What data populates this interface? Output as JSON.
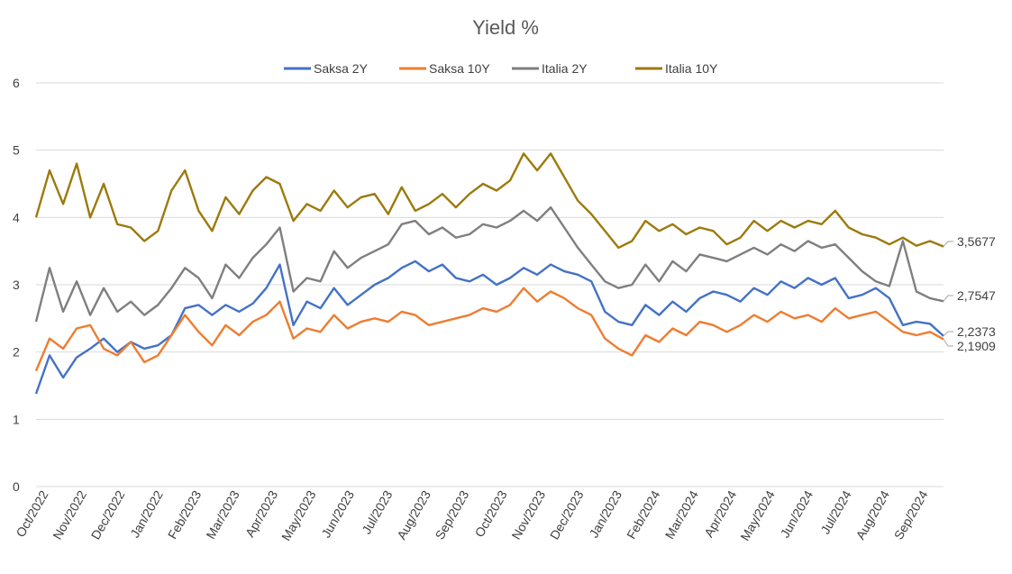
{
  "chart_data": {
    "type": "line",
    "title": "Yield %",
    "xlabel": "",
    "ylabel": "",
    "ylim": [
      0,
      6
    ],
    "yticks": [
      "0",
      "1",
      "2",
      "3",
      "4",
      "5",
      "6"
    ],
    "grid": true,
    "legend_position": "top",
    "x_tick_labels": [
      "Oct/2022",
      "Nov/2022",
      "Dec/2022",
      "Jan/2022",
      "Feb/2023",
      "Mar/2023",
      "Apr/2023",
      "May/2023",
      "Jun/2023",
      "Jul/2023",
      "Aug/2023",
      "Sep/2023",
      "Oct/2023",
      "Nov/2023",
      "Dec/2023",
      "Jan/2023",
      "Feb/2024",
      "Mar/2024",
      "Apr/2024",
      "May/2024",
      "Jun/2024",
      "Jul/2024",
      "Aug/2024",
      "Sep/2024"
    ],
    "series": [
      {
        "name": "Saksa 2Y",
        "color": "#4472c4",
        "values": [
          1.38,
          1.95,
          1.62,
          1.92,
          2.05,
          2.2,
          2.0,
          2.15,
          2.05,
          2.1,
          2.25,
          2.65,
          2.7,
          2.55,
          2.7,
          2.6,
          2.72,
          2.95,
          3.3,
          2.4,
          2.75,
          2.65,
          2.95,
          2.7,
          2.85,
          3.0,
          3.1,
          3.25,
          3.35,
          3.2,
          3.3,
          3.1,
          3.05,
          3.15,
          3.0,
          3.1,
          3.25,
          3.15,
          3.3,
          3.2,
          3.15,
          3.05,
          2.6,
          2.45,
          2.4,
          2.7,
          2.55,
          2.75,
          2.6,
          2.8,
          2.9,
          2.85,
          2.75,
          2.95,
          2.85,
          3.05,
          2.95,
          3.1,
          3.0,
          3.1,
          2.8,
          2.85,
          2.95,
          2.8,
          2.4,
          2.45,
          2.42,
          2.2373
        ]
      },
      {
        "name": "Saksa 10Y",
        "color": "#ed7d31",
        "values": [
          1.72,
          2.2,
          2.05,
          2.35,
          2.4,
          2.05,
          1.95,
          2.15,
          1.85,
          1.95,
          2.25,
          2.55,
          2.3,
          2.1,
          2.4,
          2.25,
          2.45,
          2.55,
          2.75,
          2.2,
          2.35,
          2.3,
          2.55,
          2.35,
          2.45,
          2.5,
          2.45,
          2.6,
          2.55,
          2.4,
          2.45,
          2.5,
          2.55,
          2.65,
          2.6,
          2.7,
          2.95,
          2.75,
          2.9,
          2.8,
          2.65,
          2.55,
          2.2,
          2.05,
          1.95,
          2.25,
          2.15,
          2.35,
          2.25,
          2.45,
          2.4,
          2.3,
          2.4,
          2.55,
          2.45,
          2.6,
          2.5,
          2.55,
          2.45,
          2.65,
          2.5,
          2.55,
          2.6,
          2.45,
          2.3,
          2.25,
          2.3,
          2.1909
        ]
      },
      {
        "name": "Italia 2Y",
        "color": "#7f7f7f",
        "values": [
          2.45,
          3.25,
          2.6,
          3.05,
          2.55,
          2.95,
          2.6,
          2.75,
          2.55,
          2.7,
          2.95,
          3.25,
          3.1,
          2.8,
          3.3,
          3.1,
          3.4,
          3.6,
          3.85,
          2.9,
          3.1,
          3.05,
          3.5,
          3.25,
          3.4,
          3.5,
          3.6,
          3.9,
          3.95,
          3.75,
          3.85,
          3.7,
          3.75,
          3.9,
          3.85,
          3.95,
          4.1,
          3.95,
          4.15,
          3.85,
          3.55,
          3.3,
          3.05,
          2.95,
          3.0,
          3.3,
          3.05,
          3.35,
          3.2,
          3.45,
          3.4,
          3.35,
          3.45,
          3.55,
          3.45,
          3.6,
          3.5,
          3.65,
          3.55,
          3.6,
          3.4,
          3.2,
          3.05,
          2.98,
          3.65,
          2.9,
          2.8,
          2.7547
        ]
      },
      {
        "name": "Italia 10Y",
        "color": "#9c7a0c",
        "values": [
          4.0,
          4.7,
          4.2,
          4.8,
          4.0,
          4.5,
          3.9,
          3.85,
          3.65,
          3.8,
          4.4,
          4.7,
          4.1,
          3.8,
          4.3,
          4.05,
          4.4,
          4.6,
          4.5,
          3.95,
          4.2,
          4.1,
          4.4,
          4.15,
          4.3,
          4.35,
          4.05,
          4.45,
          4.1,
          4.2,
          4.35,
          4.15,
          4.35,
          4.5,
          4.4,
          4.55,
          4.95,
          4.7,
          4.95,
          4.6,
          4.25,
          4.05,
          3.8,
          3.55,
          3.65,
          3.95,
          3.8,
          3.9,
          3.75,
          3.85,
          3.8,
          3.6,
          3.7,
          3.95,
          3.8,
          3.95,
          3.85,
          3.95,
          3.9,
          4.1,
          3.85,
          3.75,
          3.7,
          3.6,
          3.7,
          3.58,
          3.65,
          3.5677
        ]
      }
    ],
    "end_labels": [
      "3,5677",
      "2,7547",
      "2,2373",
      "2,1909"
    ]
  }
}
